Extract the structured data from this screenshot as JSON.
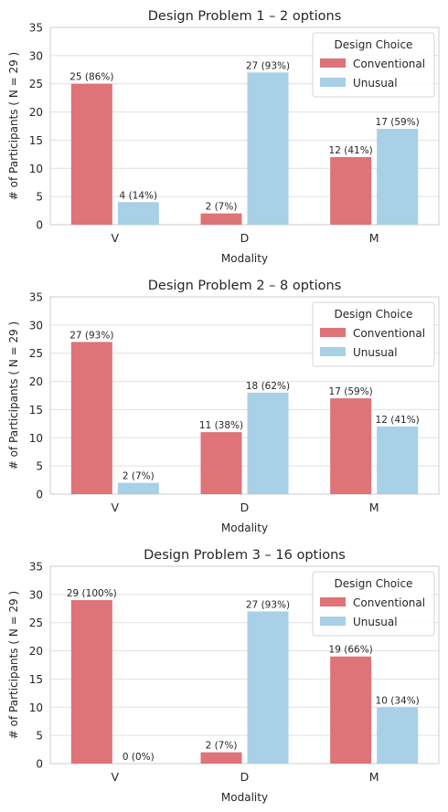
{
  "colors": {
    "conventional": "#DE7378",
    "unusual": "#A8D0E6",
    "grid": "#E0E0E0",
    "spine": "#CCCCCC",
    "text": "#262626"
  },
  "chart_data": [
    {
      "type": "bar",
      "title": "Design Problem 1 – 2 options",
      "xlabel": "Modality",
      "ylabel": "# of Participants ( N = 29 )",
      "categories": [
        "V",
        "D",
        "M"
      ],
      "yticks": [
        "0",
        "5",
        "10",
        "15",
        "20",
        "25",
        "30",
        "35"
      ],
      "ylim": [
        0,
        35
      ],
      "grid": true,
      "legend": {
        "title": "Design Choice",
        "placement": "top-right"
      },
      "series": [
        {
          "name": "Conventional",
          "values": [
            25,
            2,
            12
          ],
          "labels": [
            "25 (86%)",
            "2 (7%)",
            "12 (41%)"
          ]
        },
        {
          "name": "Unusual",
          "values": [
            4,
            27,
            17
          ],
          "labels": [
            "4 (14%)",
            "27 (93%)",
            "17 (59%)"
          ]
        }
      ]
    },
    {
      "type": "bar",
      "title": "Design Problem 2 – 8 options",
      "xlabel": "Modality",
      "ylabel": "# of Participants ( N = 29 )",
      "categories": [
        "V",
        "D",
        "M"
      ],
      "yticks": [
        "0",
        "5",
        "10",
        "15",
        "20",
        "25",
        "30",
        "35"
      ],
      "ylim": [
        0,
        35
      ],
      "grid": true,
      "legend": {
        "title": "Design Choice",
        "placement": "top-right"
      },
      "series": [
        {
          "name": "Conventional",
          "values": [
            27,
            11,
            17
          ],
          "labels": [
            "27 (93%)",
            "11 (38%)",
            "17 (59%)"
          ]
        },
        {
          "name": "Unusual",
          "values": [
            2,
            18,
            12
          ],
          "labels": [
            "2 (7%)",
            "18 (62%)",
            "12 (41%)"
          ]
        }
      ]
    },
    {
      "type": "bar",
      "title": "Design Problem 3 – 16 options",
      "xlabel": "Modality",
      "ylabel": "# of Participants ( N = 29 )",
      "categories": [
        "V",
        "D",
        "M"
      ],
      "yticks": [
        "0",
        "5",
        "10",
        "15",
        "20",
        "25",
        "30",
        "35"
      ],
      "ylim": [
        0,
        35
      ],
      "grid": true,
      "legend": {
        "title": "Design Choice",
        "placement": "top-right"
      },
      "series": [
        {
          "name": "Conventional",
          "values": [
            29,
            2,
            19
          ],
          "labels": [
            "29 (100%)",
            "2 (7%)",
            "19 (66%)"
          ]
        },
        {
          "name": "Unusual",
          "values": [
            0,
            27,
            10
          ],
          "labels": [
            "0 (0%)",
            "27 (93%)",
            "10 (34%)"
          ]
        }
      ]
    }
  ]
}
